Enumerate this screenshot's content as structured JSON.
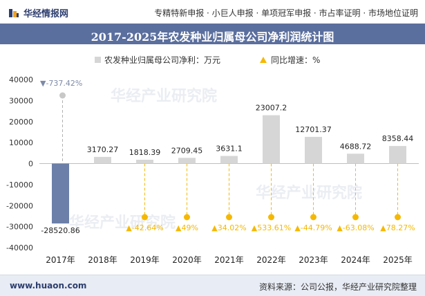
{
  "header": {
    "site_name": "华经情报网",
    "links": "专精特新申报 · 小巨人申报 · 单项冠军申报 · 市占率证明 · 市场地位证明"
  },
  "title": "2017-2025年农发种业归属母公司净利润统计图",
  "legend": {
    "series1": "农发种业归属母公司净利：万元",
    "series2": "同比增速：%"
  },
  "watermark": "华经产业研究院",
  "footer": {
    "left": "www.huaon.com",
    "right": "资料来源：公司公报，华经产业研究院整理"
  },
  "colors": {
    "bar": "#d6d6d6",
    "bar_negative": "#6b7fa8",
    "growth_marker": "#f5b800",
    "growth_marker_negative": "#7d8aa6",
    "title_bg": "#5b6f9e"
  },
  "chart_data": {
    "type": "bar",
    "categories": [
      "2017年",
      "2018年",
      "2019年",
      "2020年",
      "2021年",
      "2022年",
      "2023年",
      "2024年",
      "2025年"
    ],
    "series": [
      {
        "name": "农发种业归属母公司净利：万元",
        "values": [
          -28520.86,
          3170.27,
          1818.39,
          2709.45,
          3631.1,
          23007.2,
          12701.37,
          4688.72,
          8358.44
        ],
        "labels": [
          "-28520.86",
          "3170.27",
          "1818.39",
          "2709.45",
          "3631.1",
          "23007.2",
          "12701.37",
          "4688.72",
          "8358.44"
        ]
      },
      {
        "name": "同比增速：%",
        "values": [
          -737.42,
          null,
          -42.64,
          49,
          34.02,
          533.61,
          -44.79,
          -63.08,
          78.27
        ],
        "labels": [
          "▼-737.42%",
          "",
          "▲-42.64%",
          "▲49%",
          "▲34.02%",
          "▲533.61%",
          "▲-44.79%",
          "▲-63.08%",
          "▲78.27%"
        ]
      }
    ],
    "ylim": [
      -40000,
      40000
    ],
    "yticks": [
      "40000",
      "30000",
      "20000",
      "10000",
      "0",
      "-10000",
      "-20000",
      "-30000",
      "-40000"
    ],
    "grid": false
  }
}
